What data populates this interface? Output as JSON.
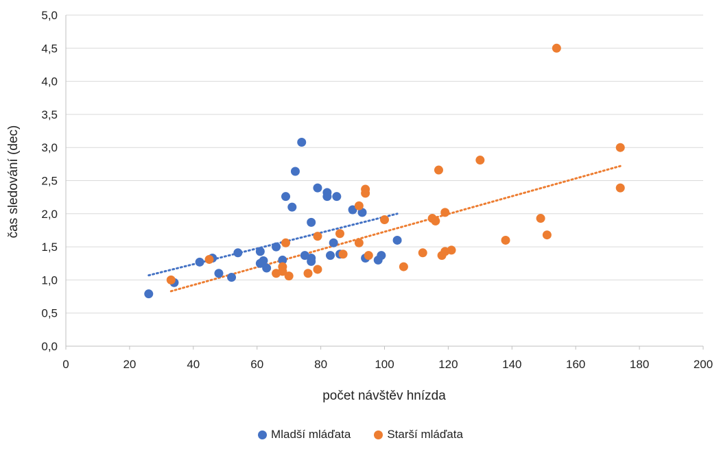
{
  "chart_data": {
    "type": "scatter",
    "title": "",
    "xlabel": "počet návštěv hnízda",
    "ylabel": "čas sledování (dec)",
    "xlim": [
      0,
      200
    ],
    "ylim": [
      0,
      5
    ],
    "xticks": [
      "0",
      "20",
      "40",
      "60",
      "80",
      "100",
      "120",
      "140",
      "160",
      "180",
      "200"
    ],
    "yticks": [
      "0,0",
      "0,5",
      "1,0",
      "1,5",
      "2,0",
      "2,5",
      "3,0",
      "3,5",
      "4,0",
      "4,5",
      "5,0"
    ],
    "legend_position": "bottom",
    "series": [
      {
        "name": "Mladší mláďata",
        "color": "#4472C4",
        "points": [
          [
            26,
            0.79
          ],
          [
            34,
            0.96
          ],
          [
            42,
            1.27
          ],
          [
            46,
            1.33
          ],
          [
            48,
            1.1
          ],
          [
            52,
            1.04
          ],
          [
            54,
            1.41
          ],
          [
            61,
            1.43
          ],
          [
            61,
            1.25
          ],
          [
            62,
            1.29
          ],
          [
            63,
            1.18
          ],
          [
            66,
            1.5
          ],
          [
            68,
            1.3
          ],
          [
            69,
            2.26
          ],
          [
            71,
            2.1
          ],
          [
            72,
            2.64
          ],
          [
            74,
            3.08
          ],
          [
            75,
            1.37
          ],
          [
            77,
            1.87
          ],
          [
            77,
            1.28
          ],
          [
            77,
            1.33
          ],
          [
            79,
            2.39
          ],
          [
            82,
            2.32
          ],
          [
            82,
            2.26
          ],
          [
            83,
            1.37
          ],
          [
            84,
            1.56
          ],
          [
            85,
            2.26
          ],
          [
            86,
            1.39
          ],
          [
            90,
            2.06
          ],
          [
            93,
            2.02
          ],
          [
            94,
            1.33
          ],
          [
            98,
            1.3
          ],
          [
            99,
            1.37
          ],
          [
            104,
            1.6
          ]
        ],
        "trendline": [
          [
            26,
            1.07
          ],
          [
            104,
            2.0
          ]
        ]
      },
      {
        "name": "Starší mláďata",
        "color": "#ED7D31",
        "points": [
          [
            33,
            1.0
          ],
          [
            45,
            1.31
          ],
          [
            66,
            1.1
          ],
          [
            68,
            1.13
          ],
          [
            68,
            1.2
          ],
          [
            69,
            1.56
          ],
          [
            70,
            1.06
          ],
          [
            76,
            1.1
          ],
          [
            79,
            1.16
          ],
          [
            79,
            1.66
          ],
          [
            86,
            1.7
          ],
          [
            87,
            1.39
          ],
          [
            92,
            2.12
          ],
          [
            92,
            1.56
          ],
          [
            94,
            2.37
          ],
          [
            94,
            2.31
          ],
          [
            95,
            1.37
          ],
          [
            100,
            1.91
          ],
          [
            106,
            1.2
          ],
          [
            112,
            1.41
          ],
          [
            115,
            1.93
          ],
          [
            116,
            1.89
          ],
          [
            117,
            2.66
          ],
          [
            118,
            1.37
          ],
          [
            119,
            1.43
          ],
          [
            119,
            2.02
          ],
          [
            121,
            1.45
          ],
          [
            130,
            2.81
          ],
          [
            138,
            1.6
          ],
          [
            149,
            1.93
          ],
          [
            151,
            1.68
          ],
          [
            154,
            4.5
          ],
          [
            174,
            3.0
          ],
          [
            174,
            2.39
          ]
        ],
        "trendline": [
          [
            33,
            0.83
          ],
          [
            174,
            2.72
          ]
        ]
      }
    ]
  }
}
